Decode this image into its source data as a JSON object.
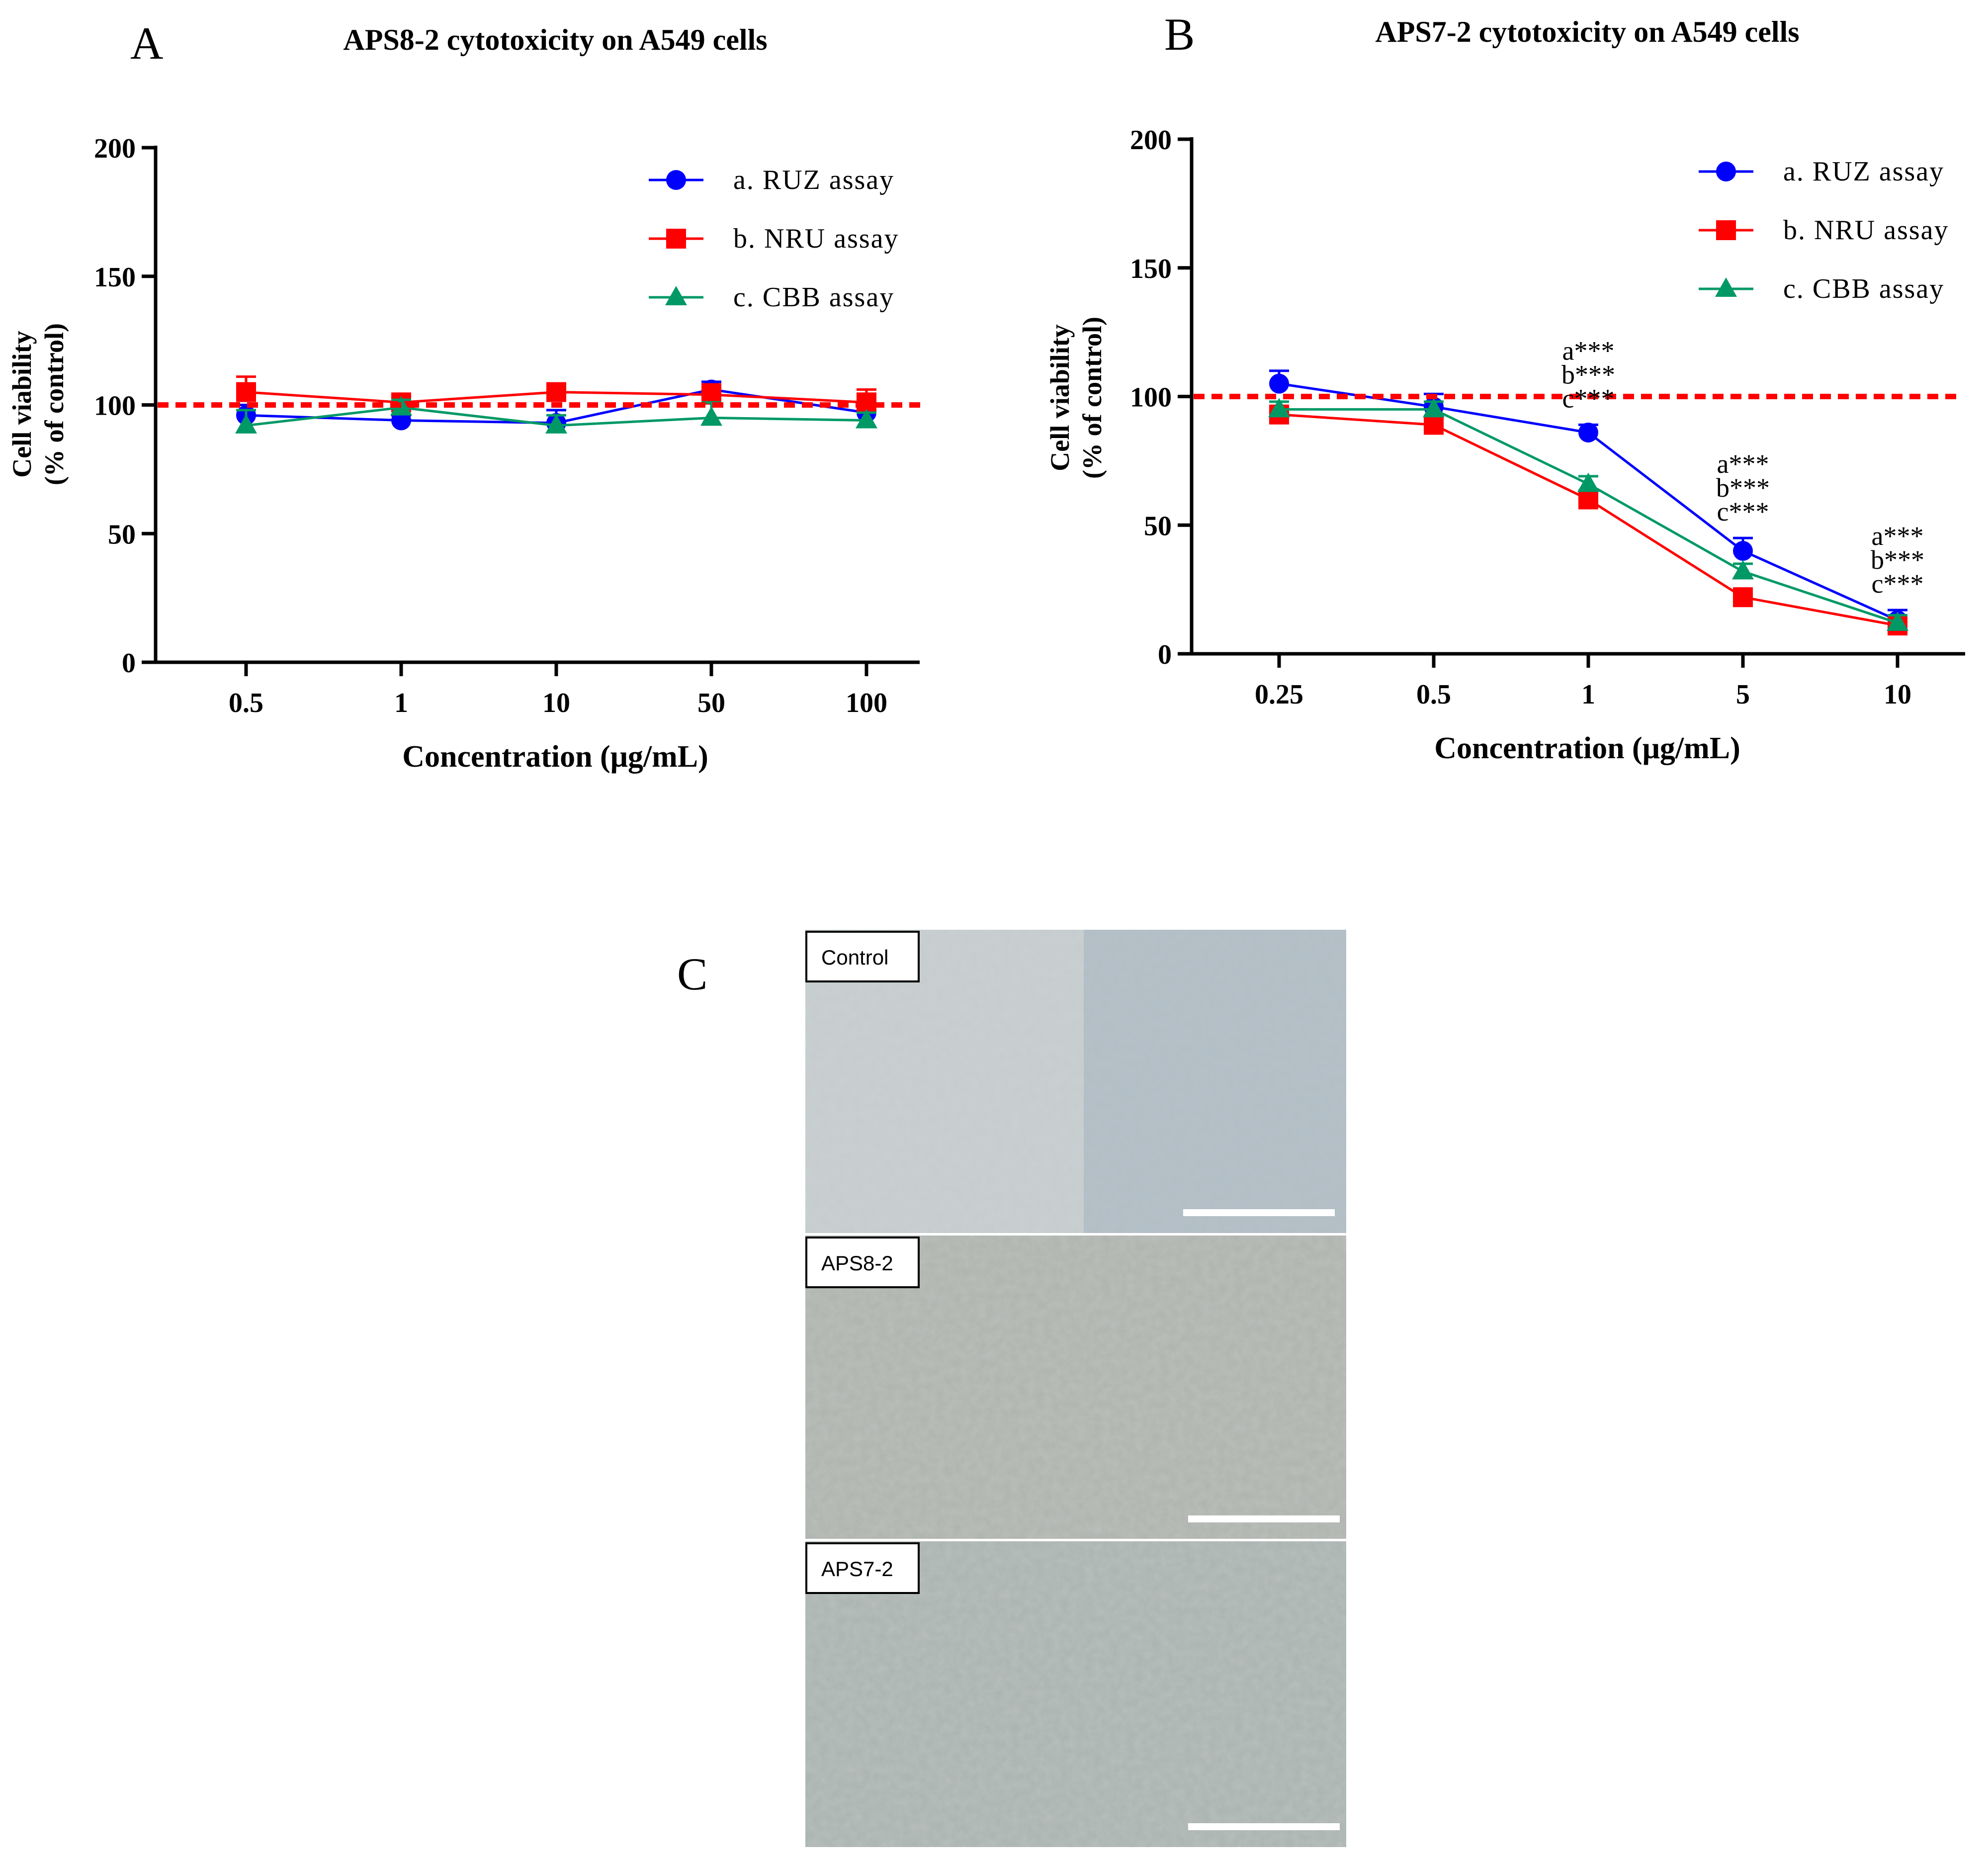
{
  "chart_data": [
    {
      "panel": "A",
      "type": "line",
      "title": "APS8-2 cytotoxicity on A549 cells",
      "xlabel": "Concentration (μg/mL)",
      "ylabel_line1": "Cell viability",
      "ylabel_line2": "(% of control)",
      "categories": [
        "0.5",
        "1",
        "10",
        "50",
        "100"
      ],
      "ylim": [
        0,
        200
      ],
      "yticks": [
        "0",
        "50",
        "100",
        "150",
        "200"
      ],
      "reference_line": 100,
      "series": [
        {
          "name": "a. RUZ assay",
          "color": "#0000ff",
          "marker": "circle",
          "values": [
            96,
            94,
            93,
            106,
            97
          ],
          "errors": [
            4,
            2,
            5,
            3,
            3
          ]
        },
        {
          "name": "b. NRU assay",
          "color": "#ff0000",
          "marker": "square",
          "values": [
            105,
            101,
            105,
            104,
            101
          ],
          "errors": [
            6,
            3,
            3,
            4,
            5
          ]
        },
        {
          "name": "c. CBB assay",
          "color": "#009966",
          "marker": "triangle",
          "values": [
            92,
            99,
            92,
            95,
            94
          ],
          "errors": [
            6,
            3,
            4,
            6,
            3
          ]
        }
      ]
    },
    {
      "panel": "B",
      "type": "line",
      "title": "APS7-2 cytotoxicity on A549 cells",
      "xlabel": "Concentration (μg/mL)",
      "ylabel_line1": "Cell viability",
      "ylabel_line2": "(% of control)",
      "categories": [
        "0.25",
        "0.5",
        "1",
        "5",
        "10"
      ],
      "ylim": [
        0,
        200
      ],
      "yticks": [
        "0",
        "50",
        "100",
        "150",
        "200"
      ],
      "reference_line": 100,
      "series": [
        {
          "name": "a. RUZ assay",
          "color": "#0000ff",
          "marker": "circle",
          "values": [
            105,
            96,
            86,
            40,
            13
          ],
          "errors": [
            5,
            5,
            3,
            5,
            4
          ]
        },
        {
          "name": "b. NRU assay",
          "color": "#ff0000",
          "marker": "square",
          "values": [
            93,
            89,
            60,
            22,
            11
          ],
          "errors": [
            3,
            3,
            3,
            3,
            3
          ]
        },
        {
          "name": "c. CBB assay",
          "color": "#009966",
          "marker": "triangle",
          "values": [
            95,
            95,
            66,
            32,
            12
          ],
          "errors": [
            3,
            3,
            3,
            3,
            3
          ]
        }
      ],
      "annotations": [
        {
          "category": "1",
          "labels": [
            "a***",
            "b***",
            "c***"
          ]
        },
        {
          "category": "5",
          "labels": [
            "a***",
            "b***",
            "c***"
          ]
        },
        {
          "category": "10",
          "labels": [
            "a***",
            "b***",
            "c***"
          ]
        }
      ]
    }
  ],
  "panel_c": {
    "letter": "C",
    "images": [
      {
        "label": "Control"
      },
      {
        "label": "APS8-2"
      },
      {
        "label": "APS7-2"
      }
    ]
  }
}
